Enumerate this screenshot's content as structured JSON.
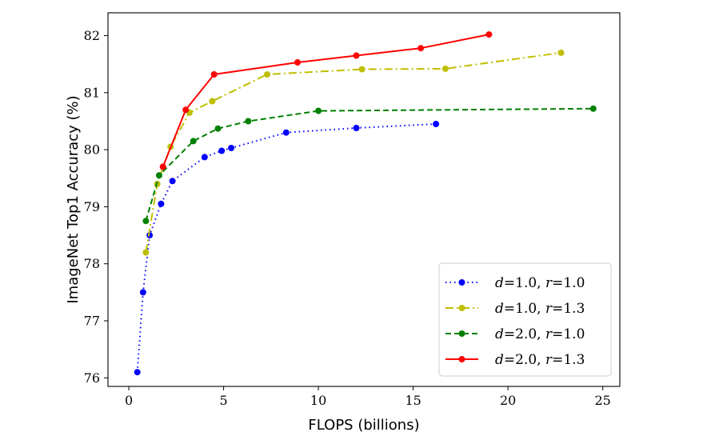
{
  "chart_data": {
    "type": "line",
    "xlabel": "FLOPS (billions)",
    "ylabel": "ImageNet Top1 Accuracy (%)",
    "xlim": [
      -1.1,
      25.9
    ],
    "ylim": [
      75.85,
      82.4
    ],
    "xticks": [
      0,
      5,
      10,
      15,
      20,
      25
    ],
    "yticks": [
      76,
      77,
      78,
      79,
      80,
      81,
      82
    ],
    "grid": false,
    "legend_position": "lower-right",
    "series": [
      {
        "name": "d=1.0, r=1.0",
        "legend": {
          "v1": "d",
          "n1": "=1.0, ",
          "v2": "r",
          "n2": "=1.0"
        },
        "color": "#0000ff",
        "linestyle": "dotted",
        "points": [
          [
            0.45,
            76.1
          ],
          [
            0.75,
            77.5
          ],
          [
            1.1,
            78.5
          ],
          [
            1.7,
            79.05
          ],
          [
            2.3,
            79.45
          ],
          [
            4.0,
            79.87
          ],
          [
            4.9,
            79.98
          ],
          [
            5.4,
            80.03
          ],
          [
            8.3,
            80.3
          ],
          [
            12.0,
            80.38
          ],
          [
            16.2,
            80.45
          ]
        ]
      },
      {
        "name": "d=1.0, r=1.3",
        "legend": {
          "v1": "d",
          "n1": "=1.0, ",
          "v2": "r",
          "n2": "=1.3"
        },
        "color": "#bfbf00",
        "linestyle": "dashdot",
        "points": [
          [
            0.9,
            78.2
          ],
          [
            1.5,
            79.4
          ],
          [
            2.2,
            80.05
          ],
          [
            3.2,
            80.65
          ],
          [
            4.4,
            80.85
          ],
          [
            7.3,
            81.32
          ],
          [
            12.3,
            81.41
          ],
          [
            16.7,
            81.42
          ],
          [
            22.8,
            81.7
          ]
        ]
      },
      {
        "name": "d=2.0, r=1.0",
        "legend": {
          "v1": "d",
          "n1": "=2.0, ",
          "v2": "r",
          "n2": "=1.0"
        },
        "color": "#008000",
        "linestyle": "dashed",
        "points": [
          [
            0.9,
            78.75
          ],
          [
            1.6,
            79.55
          ],
          [
            3.4,
            80.15
          ],
          [
            4.7,
            80.37
          ],
          [
            6.3,
            80.5
          ],
          [
            10.0,
            80.68
          ],
          [
            24.5,
            80.72
          ]
        ]
      },
      {
        "name": "d=2.0, r=1.3",
        "legend": {
          "v1": "d",
          "n1": "=2.0, ",
          "v2": "r",
          "n2": "=1.3"
        },
        "color": "#ff0000",
        "linestyle": "solid",
        "points": [
          [
            1.8,
            79.7
          ],
          [
            3.0,
            80.7
          ],
          [
            4.5,
            81.32
          ],
          [
            8.9,
            81.53
          ],
          [
            12.0,
            81.65
          ],
          [
            15.4,
            81.78
          ],
          [
            19.0,
            82.02
          ]
        ]
      }
    ]
  }
}
